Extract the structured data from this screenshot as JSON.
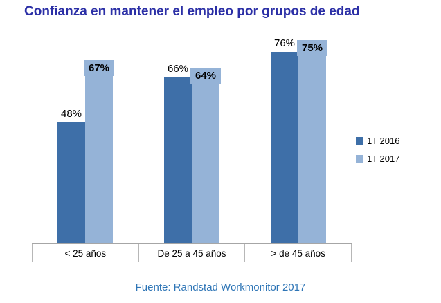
{
  "chart_data": {
    "type": "bar",
    "title": "Confianza en mantener el empleo por grupos de edad",
    "categories": [
      "< 25 años",
      "De 25 a 45 años",
      "> de 45 años"
    ],
    "series": [
      {
        "name": "1T 2016",
        "values": [
          48,
          66,
          76
        ],
        "color": "#3e6fa8",
        "label_style": "plain"
      },
      {
        "name": "1T 2017",
        "values": [
          67,
          64,
          75
        ],
        "color": "#95b3d7",
        "label_style": "highlight"
      }
    ],
    "value_suffix": "%",
    "ylim": [
      0,
      80
    ],
    "grid": false,
    "legend_position": "right",
    "title_color": "#2b2fa6",
    "source": "Fuente: Randstad Workmonitor 2017",
    "source_color": "#2e75b6"
  }
}
